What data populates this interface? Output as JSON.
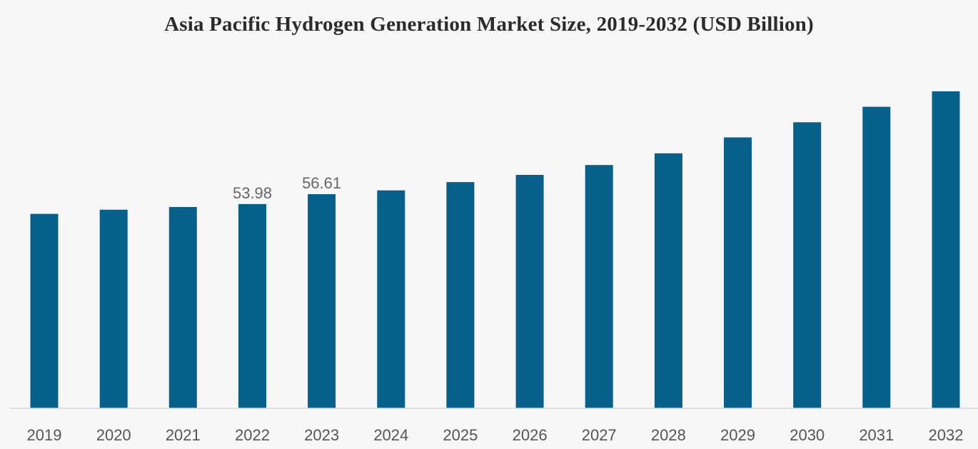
{
  "chart_data": {
    "type": "bar",
    "title": "Asia Pacific Hydrogen Generation Market Size, 2019-2032 (USD Billion)",
    "xlabel": "",
    "ylabel": "",
    "categories": [
      "2019",
      "2020",
      "2021",
      "2022",
      "2023",
      "2024",
      "2025",
      "2026",
      "2027",
      "2028",
      "2029",
      "2030",
      "2031",
      "2032"
    ],
    "values": [
      51.4,
      52.5,
      53.2,
      53.98,
      56.61,
      57.6,
      59.8,
      61.7,
      64.3,
      67.4,
      71.6,
      75.6,
      79.7,
      83.8
    ],
    "data_labels": [
      {
        "index": 3,
        "text": "53.98"
      },
      {
        "index": 4,
        "text": "56.61"
      }
    ],
    "ylim": [
      0,
      90
    ],
    "grid": false,
    "legend": "none",
    "colors": {
      "bar": "#066089",
      "axis": "#d9d9d9"
    }
  }
}
